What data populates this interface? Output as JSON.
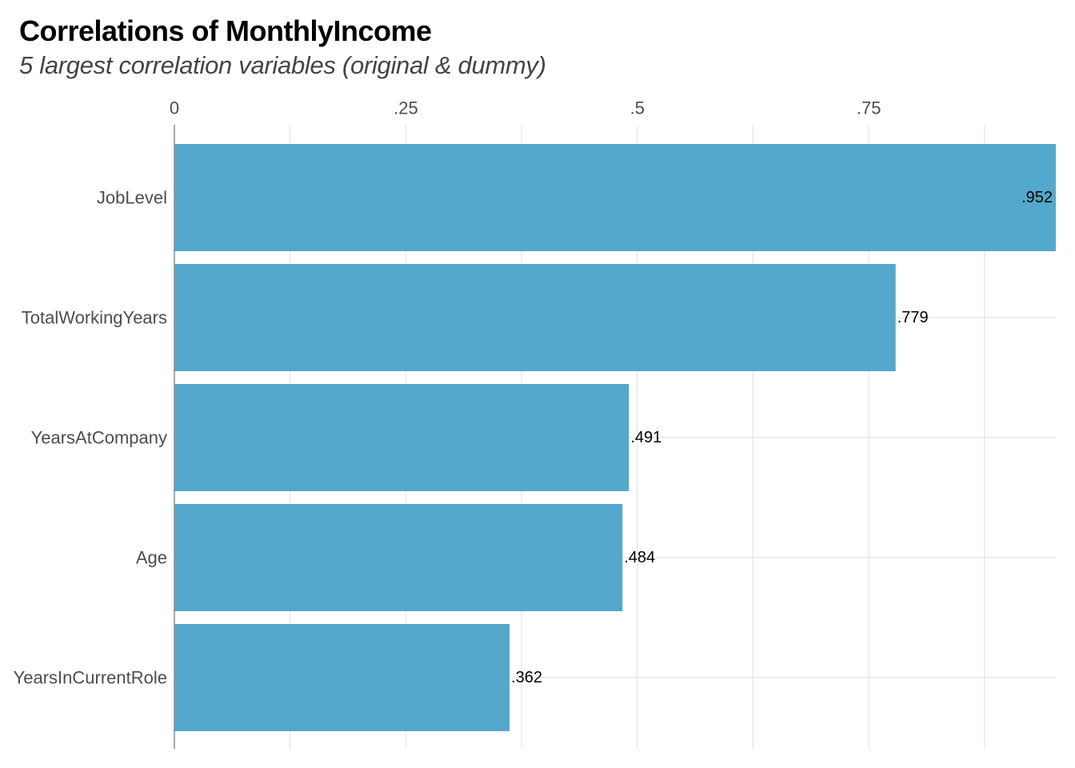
{
  "chart_data": {
    "type": "bar",
    "orientation": "horizontal",
    "title": "Correlations of MonthlyIncome",
    "subtitle": "5 largest correlation variables (original & dummy)",
    "categories": [
      "JobLevel",
      "TotalWorkingYears",
      "YearsAtCompany",
      "Age",
      "YearsInCurrentRole"
    ],
    "values": [
      0.952,
      0.779,
      0.491,
      0.484,
      0.362
    ],
    "value_labels": [
      ".952",
      ".779",
      ".491",
      ".484",
      ".362"
    ],
    "x_ticks": [
      0,
      0.25,
      0.5,
      0.75
    ],
    "x_tick_labels": [
      "0",
      ".25",
      ".5",
      ".75"
    ],
    "xlim": [
      0,
      0.952
    ],
    "x_axis_position": "top",
    "grid": true,
    "bar_color": "#53a8cb",
    "grid_color": "#dedede"
  }
}
